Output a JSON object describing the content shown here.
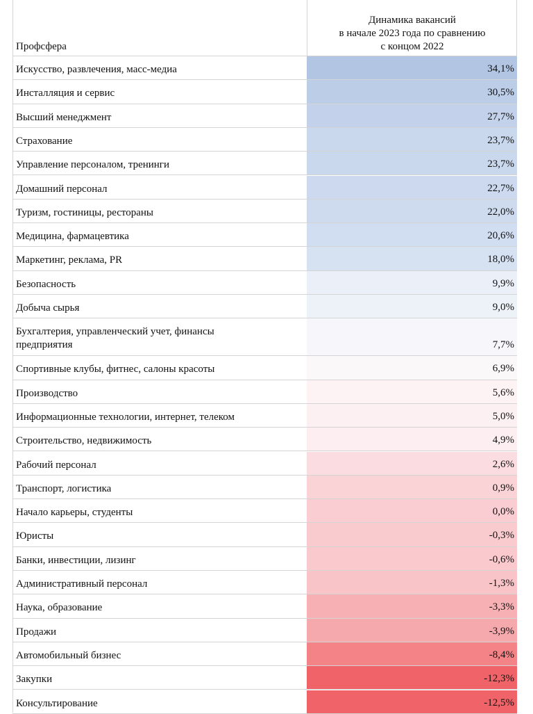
{
  "header": {
    "col1": "Профсфера",
    "col2_line1": "Динамика вакансий",
    "col2_line2": "в начале 2023 года по сравнению",
    "col2_line3": "с концом 2022"
  },
  "rows": [
    {
      "name": "Искусство, развлечения, масс-медиа",
      "value": "34,1%",
      "color": "#b2c6e4"
    },
    {
      "name": "Инсталляция и сервис",
      "value": "30,5%",
      "color": "#bccde8"
    },
    {
      "name": "Высший менеджмент",
      "value": "27,7%",
      "color": "#c3d2ea"
    },
    {
      "name": "Страхование",
      "value": "23,7%",
      "color": "#cad8ed"
    },
    {
      "name": "Управление персоналом, тренинги",
      "value": "23,7%",
      "color": "#cad8ed"
    },
    {
      "name": "Домашний персонал",
      "value": "22,7%",
      "color": "#ccd9ee"
    },
    {
      "name": "Туризм, гостиницы, рестораны",
      "value": "22,0%",
      "color": "#cedbef"
    },
    {
      "name": "Медицина, фармацевтика",
      "value": "20,6%",
      "color": "#d1ddf0"
    },
    {
      "name": "Маркетинг, реклама, PR",
      "value": "18,0%",
      "color": "#d6e1f2"
    },
    {
      "name": "Безопасность",
      "value": "9,9%",
      "color": "#ebf0f8"
    },
    {
      "name": "Добыча сырья",
      "value": "9,0%",
      "color": "#edf2f9"
    },
    {
      "name": "Бухгалтерия, управленческий учет, финансы предприятия",
      "value": "7,7%",
      "color": "#f7f7fb"
    },
    {
      "name": "Спортивные клубы, фитнес, салоны красоты",
      "value": "6,9%",
      "color": "#fbf8fa"
    },
    {
      "name": "Производство",
      "value": "5,6%",
      "color": "#fdf3f5"
    },
    {
      "name": "Информационные технологии, интернет, телеком",
      "value": "5,0%",
      "color": "#fdf0f2"
    },
    {
      "name": "Строительство, недвижимость",
      "value": "4,9%",
      "color": "#fdeff1"
    },
    {
      "name": "Рабочий персонал",
      "value": "2,6%",
      "color": "#fbdde1"
    },
    {
      "name": "Транспорт, логистика",
      "value": "0,9%",
      "color": "#fad3d7"
    },
    {
      "name": "Начало карьеры, студенты",
      "value": "0,0%",
      "color": "#f9cdd1"
    },
    {
      "name": "Юристы",
      "value": "-0,3%",
      "color": "#f9cbcf"
    },
    {
      "name": "Банки, инвестиции, лизинг",
      "value": "-0,6%",
      "color": "#f9c9cd"
    },
    {
      "name": "Административный персонал",
      "value": "-1,3%",
      "color": "#f9c4c8"
    },
    {
      "name": "Наука, образование",
      "value": "-3,3%",
      "color": "#f7b0b4"
    },
    {
      "name": "Продажи",
      "value": "-3,9%",
      "color": "#f6a9ad"
    },
    {
      "name": "Автомобильный бизнес",
      "value": "-8,4%",
      "color": "#f38386"
    },
    {
      "name": "Закупки",
      "value": "-12,3%",
      "color": "#f06469"
    },
    {
      "name": "Консультирование",
      "value": "-12,5%",
      "color": "#f06368"
    }
  ]
}
